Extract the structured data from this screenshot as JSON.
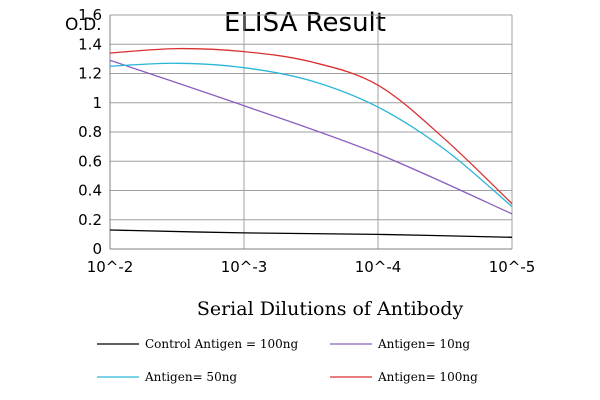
{
  "chart_data": {
    "type": "line",
    "title": "ELISA Result",
    "ylabel": "O.D.",
    "xlabel": "Serial Dilutions of Antibody",
    "x_categories": [
      "10^-2",
      "10^-3",
      "10^-4",
      "10^-5"
    ],
    "x_positions": [
      0,
      1,
      2,
      3
    ],
    "ylim": [
      0,
      1.6
    ],
    "yticks": [
      0,
      0.2,
      0.4,
      0.6,
      0.8,
      1,
      1.2,
      1.4,
      1.6
    ],
    "ytick_labels": [
      "0",
      "0.2",
      "0.4",
      "0.6",
      "0.8",
      "1",
      "1.2",
      "1.4",
      "1.6"
    ],
    "grid": true,
    "legend_position": "bottom",
    "series": [
      {
        "name": "Control Antigen = 100ng",
        "color": "#000000",
        "x": [
          0,
          1,
          2,
          3
        ],
        "values": [
          0.13,
          0.11,
          0.1,
          0.08
        ]
      },
      {
        "name": "Antigen= 10ng",
        "color": "#8a5fbf",
        "x": [
          0,
          1,
          2,
          3
        ],
        "values": [
          1.29,
          0.98,
          0.65,
          0.24
        ]
      },
      {
        "name": "Antigen= 50ng",
        "color": "#29b6d8",
        "x": [
          0,
          0.5,
          1,
          1.5,
          2,
          2.5,
          3
        ],
        "values": [
          1.25,
          1.27,
          1.24,
          1.15,
          0.97,
          0.68,
          0.29
        ]
      },
      {
        "name": "Antigen= 100ng",
        "color": "#d93030",
        "x": [
          0,
          0.5,
          1,
          1.5,
          2,
          2.5,
          3
        ],
        "values": [
          1.34,
          1.37,
          1.35,
          1.28,
          1.12,
          0.75,
          0.31
        ]
      }
    ]
  }
}
